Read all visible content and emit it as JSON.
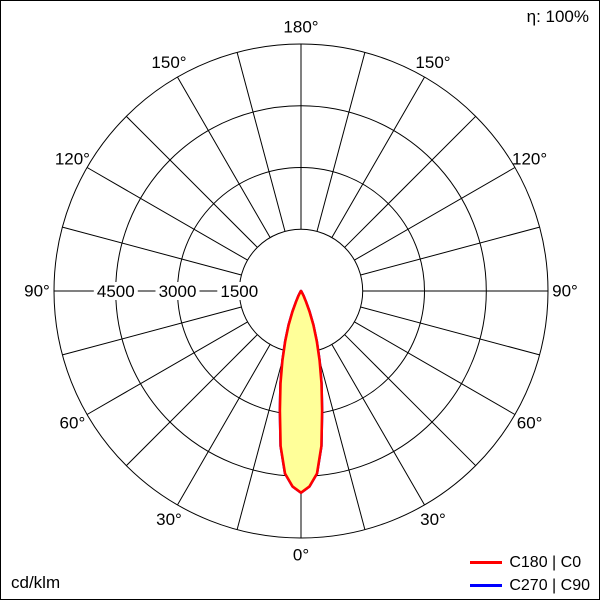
{
  "corner": {
    "efficiency": "η: 100%",
    "unit": "cd/klm"
  },
  "legend": {
    "items": [
      {
        "label": "C180 | C0",
        "color": "#ff0000"
      },
      {
        "label": "C270 | C90",
        "color": "#0000ff"
      }
    ]
  },
  "chart_data": {
    "type": "polar_line",
    "description": "Photometric polar diagram: luminous intensity (cd/klm) vs gamma angle, narrow downward beam",
    "unit": "cd/klm",
    "efficiency": "η: 100%",
    "angle_ticks_deg": [
      0,
      30,
      60,
      90,
      120,
      150,
      180
    ],
    "angle_tick_labels": [
      "0°",
      "30°",
      "60°",
      "90°",
      "120°",
      "150°",
      "180°"
    ],
    "angle_grid_step_deg": 15,
    "radial_ticks": [
      1500,
      3000,
      4500
    ],
    "radial_max": 6000,
    "grid_color": "#000000",
    "series": [
      {
        "name": "C270 | C90",
        "color": "#0000ff",
        "fill": "#ffff99",
        "gamma_deg": [
          0,
          2.5,
          5,
          7.5,
          10,
          12.5,
          15,
          17.5,
          20,
          22.5,
          25,
          27.5,
          30,
          35,
          40,
          45,
          60,
          90
        ],
        "intensity": [
          4900,
          4750,
          4450,
          3800,
          2950,
          2300,
          1750,
          1280,
          880,
          540,
          290,
          140,
          60,
          20,
          10,
          5,
          0,
          0
        ]
      },
      {
        "name": "C180 | C0",
        "color": "#ff0000",
        "fill": "#ffff99",
        "gamma_deg": [
          0,
          2.5,
          5,
          7.5,
          10,
          12.5,
          15,
          17.5,
          20,
          22.5,
          25,
          27.5,
          30,
          35,
          40,
          45,
          60,
          90
        ],
        "intensity": [
          4900,
          4750,
          4450,
          3800,
          2950,
          2300,
          1750,
          1280,
          880,
          540,
          290,
          140,
          60,
          20,
          10,
          5,
          0,
          0
        ]
      }
    ]
  }
}
